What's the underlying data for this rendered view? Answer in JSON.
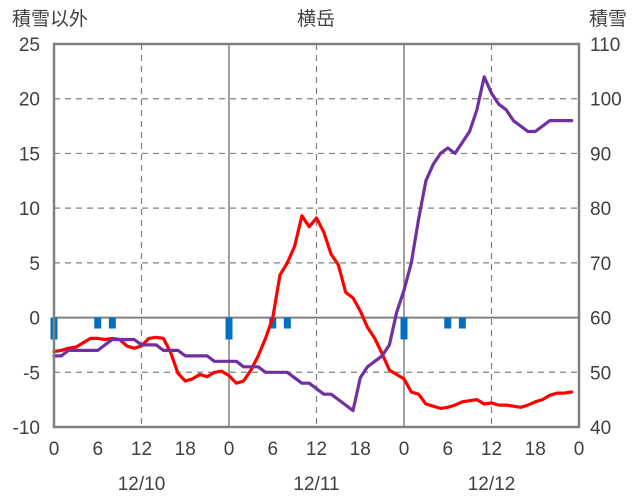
{
  "chart_data": {
    "type": "line",
    "title": "横岳",
    "left_axis_label": "積雪以外",
    "right_axis_label": "積雪",
    "left_ylim": [
      -10,
      25
    ],
    "left_yticks": [
      "25",
      "20",
      "15",
      "10",
      "5",
      "0",
      "-5",
      "-10"
    ],
    "right_ylim": [
      40,
      110
    ],
    "right_yticks": [
      "110",
      "100",
      "90",
      "80",
      "70",
      "60",
      "50",
      "40"
    ],
    "xlim_hours": [
      0,
      72
    ],
    "x_tick_labels": [
      "0",
      "6",
      "12",
      "18",
      "0",
      "6",
      "12",
      "18",
      "0",
      "6",
      "12",
      "18",
      "0"
    ],
    "date_labels": [
      "12/10",
      "12/11",
      "12/12"
    ],
    "grid": true,
    "colors": {
      "temperature": "#ff0000",
      "snow_depth": "#7030a0",
      "precipitation": "#0070c0",
      "grid": "#808080"
    },
    "series": [
      {
        "axis": "left",
        "type": "line",
        "color": "#ff0000",
        "x": [
          0,
          1,
          2,
          3,
          4,
          5,
          6,
          7,
          8,
          9,
          10,
          11,
          12,
          13,
          14,
          15,
          16,
          17,
          18,
          19,
          20,
          21,
          22,
          23,
          24,
          25,
          26,
          27,
          28,
          29,
          30,
          31,
          32,
          33,
          34,
          35,
          36,
          37,
          38,
          39,
          40,
          41,
          42,
          43,
          44,
          45,
          46,
          47,
          48,
          49,
          50,
          51,
          52,
          53,
          54,
          55,
          56,
          57,
          58,
          59,
          60,
          61,
          62,
          63,
          64,
          65,
          66,
          67,
          68,
          69,
          70,
          71
        ],
        "y": [
          -3.1,
          -3.0,
          -2.8,
          -2.7,
          -2.3,
          -1.9,
          -1.9,
          -2.0,
          -1.9,
          -2.0,
          -2.6,
          -2.8,
          -2.6,
          -1.9,
          -1.8,
          -1.9,
          -3.2,
          -5.1,
          -5.8,
          -5.6,
          -5.2,
          -5.4,
          -5.0,
          -4.9,
          -5.3,
          -6.0,
          -5.8,
          -4.8,
          -3.5,
          -1.9,
          0.0,
          3.9,
          5.0,
          6.5,
          9.3,
          8.3,
          9.1,
          7.8,
          5.8,
          4.8,
          2.3,
          1.8,
          0.6,
          -0.9,
          -1.9,
          -3.3,
          -4.8,
          -5.2,
          -5.6,
          -6.8,
          -7.0,
          -7.9,
          -8.1,
          -8.3,
          -8.2,
          -8.0,
          -7.7,
          -7.6,
          -7.5,
          -7.9,
          -7.8,
          -8.0,
          -8.0,
          -8.1,
          -8.2,
          -8.0,
          -7.7,
          -7.5,
          -7.1,
          -6.9,
          -6.9,
          -6.8
        ]
      },
      {
        "axis": "right",
        "type": "line",
        "color": "#7030a0",
        "x": [
          0,
          1,
          2,
          3,
          4,
          5,
          6,
          7,
          8,
          9,
          10,
          11,
          12,
          13,
          14,
          15,
          16,
          17,
          18,
          19,
          20,
          21,
          22,
          23,
          24,
          25,
          26,
          27,
          28,
          29,
          30,
          31,
          32,
          33,
          34,
          35,
          36,
          37,
          38,
          39,
          40,
          41,
          42,
          43,
          44,
          45,
          46,
          47,
          48,
          49,
          50,
          51,
          52,
          53,
          54,
          55,
          56,
          57,
          58,
          59,
          60,
          61,
          62,
          63,
          64,
          65,
          66,
          67,
          68,
          69,
          70,
          71
        ],
        "y": [
          53,
          53,
          54,
          54,
          54,
          54,
          54,
          55,
          56,
          56,
          56,
          56,
          55,
          55,
          55,
          54,
          54,
          54,
          53,
          53,
          53,
          53,
          52,
          52,
          52,
          52,
          51,
          51,
          51,
          50,
          50,
          50,
          50,
          49,
          48,
          48,
          47,
          46,
          46,
          45,
          44,
          43,
          49,
          51,
          52,
          53,
          55,
          61,
          65,
          70,
          78,
          85,
          88,
          90,
          91,
          90,
          92,
          94,
          98,
          104,
          101,
          99,
          98,
          96,
          95,
          94,
          94,
          95,
          96,
          96,
          96,
          96
        ]
      },
      {
        "axis": "left",
        "type": "bar",
        "color": "#0070c0",
        "x": [
          0,
          6,
          8,
          24,
          30,
          32,
          48,
          54,
          56
        ],
        "y": [
          -2.0,
          -1.0,
          -1.0,
          -2.0,
          -1.0,
          -1.0,
          -2.0,
          -1.0,
          -1.0
        ]
      }
    ]
  }
}
